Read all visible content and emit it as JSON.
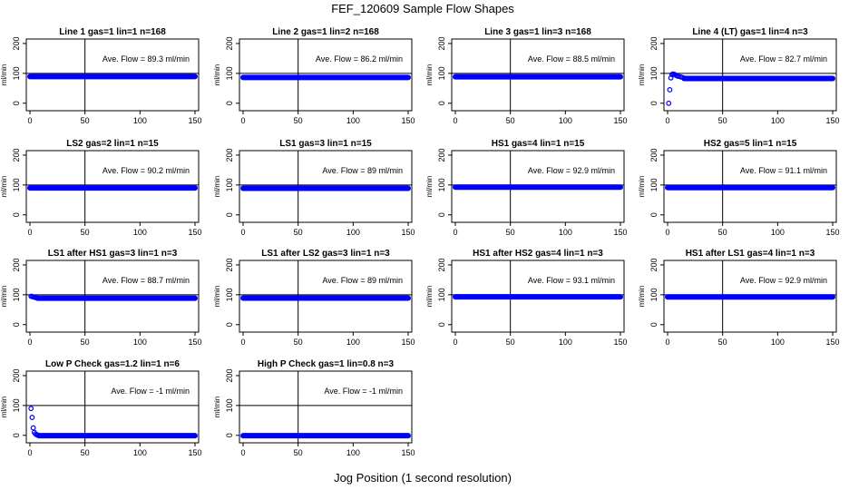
{
  "figure": {
    "title": "FEF_120609  Sample Flow Shapes",
    "xlabel": "Jog Position (1 second resolution)"
  },
  "colors": {
    "points": "#0000ff",
    "axes": "#000000"
  },
  "chart_data": [
    {
      "type": "scatter",
      "title": "Line 1 gas=1 lin=1 n=168",
      "ylabel": "ml/min",
      "xlim": [
        0,
        150
      ],
      "ylim": [
        -25,
        215
      ],
      "xticks": [
        0,
        50,
        100,
        150
      ],
      "yticks": [
        0,
        100,
        200
      ],
      "vline_x": 50,
      "hline_y": 100,
      "annotation": "Ave. Flow =  89.3  ml/min",
      "flow_value": 89.3,
      "head": [],
      "x_range": [
        0,
        150
      ]
    },
    {
      "type": "scatter",
      "title": "Line 2 gas=1 lin=2 n=168",
      "ylabel": "ml/min",
      "xlim": [
        0,
        150
      ],
      "ylim": [
        -25,
        215
      ],
      "xticks": [
        0,
        50,
        100,
        150
      ],
      "yticks": [
        0,
        100,
        200
      ],
      "vline_x": 50,
      "hline_y": 100,
      "annotation": "Ave. Flow =  86.2  ml/min",
      "flow_value": 86.2,
      "head": [],
      "x_range": [
        0,
        150
      ]
    },
    {
      "type": "scatter",
      "title": "Line 3 gas=1 lin=3 n=168",
      "ylabel": "ml/min",
      "xlim": [
        0,
        150
      ],
      "ylim": [
        -25,
        215
      ],
      "xticks": [
        0,
        50,
        100,
        150
      ],
      "yticks": [
        0,
        100,
        200
      ],
      "vline_x": 50,
      "hline_y": 100,
      "annotation": "Ave. Flow =  88.5  ml/min",
      "flow_value": 88.5,
      "head": [],
      "x_range": [
        0,
        150
      ]
    },
    {
      "type": "scatter",
      "title": "Line 4 (LT) gas=1 lin=4 n=3",
      "ylabel": "ml/min",
      "xlim": [
        0,
        150
      ],
      "ylim": [
        -25,
        215
      ],
      "xticks": [
        0,
        50,
        100,
        150
      ],
      "yticks": [
        0,
        100,
        200
      ],
      "vline_x": 50,
      "hline_y": 100,
      "annotation": "Ave. Flow =  82.7  ml/min",
      "flow_value": 82.7,
      "head": [
        [
          1,
          0
        ],
        [
          2,
          45
        ],
        [
          3,
          85
        ],
        [
          4,
          96
        ],
        [
          5,
          98
        ],
        [
          6,
          97
        ],
        [
          7,
          95
        ],
        [
          8,
          93
        ],
        [
          9,
          91
        ],
        [
          10,
          90
        ],
        [
          12,
          88
        ],
        [
          14,
          86
        ]
      ],
      "x_range": [
        15,
        150
      ]
    },
    {
      "type": "scatter",
      "title": "LS2 gas=2 lin=1 n=15",
      "ylabel": "ml/min",
      "xlim": [
        0,
        150
      ],
      "ylim": [
        -25,
        215
      ],
      "xticks": [
        0,
        50,
        100,
        150
      ],
      "yticks": [
        0,
        100,
        200
      ],
      "vline_x": 50,
      "hline_y": 100,
      "annotation": "Ave. Flow =  90.2  ml/min",
      "flow_value": 90.2,
      "head": [],
      "x_range": [
        0,
        150
      ]
    },
    {
      "type": "scatter",
      "title": "LS1 gas=3 lin=1 n=15",
      "ylabel": "ml/min",
      "xlim": [
        0,
        150
      ],
      "ylim": [
        -25,
        215
      ],
      "xticks": [
        0,
        50,
        100,
        150
      ],
      "yticks": [
        0,
        100,
        200
      ],
      "vline_x": 50,
      "hline_y": 100,
      "annotation": "Ave. Flow =  89  ml/min",
      "flow_value": 89,
      "head": [],
      "x_range": [
        0,
        150
      ]
    },
    {
      "type": "scatter",
      "title": "HS1 gas=4 lin=1 n=15",
      "ylabel": "ml/min",
      "xlim": [
        0,
        150
      ],
      "ylim": [
        -25,
        215
      ],
      "xticks": [
        0,
        50,
        100,
        150
      ],
      "yticks": [
        0,
        100,
        200
      ],
      "vline_x": 50,
      "hline_y": 100,
      "annotation": "Ave. Flow =  92.9  ml/min",
      "flow_value": 92.9,
      "head": [],
      "x_range": [
        0,
        150
      ]
    },
    {
      "type": "scatter",
      "title": "HS2 gas=5 lin=1 n=15",
      "ylabel": "ml/min",
      "xlim": [
        0,
        150
      ],
      "ylim": [
        -25,
        215
      ],
      "xticks": [
        0,
        50,
        100,
        150
      ],
      "yticks": [
        0,
        100,
        200
      ],
      "vline_x": 50,
      "hline_y": 100,
      "annotation": "Ave. Flow =  91.1  ml/min",
      "flow_value": 91.1,
      "head": [],
      "x_range": [
        0,
        150
      ]
    },
    {
      "type": "scatter",
      "title": "LS1 after HS1 gas=3 lin=1 n=3",
      "ylabel": "ml/min",
      "xlim": [
        0,
        150
      ],
      "ylim": [
        -25,
        215
      ],
      "xticks": [
        0,
        50,
        100,
        150
      ],
      "yticks": [
        0,
        100,
        200
      ],
      "vline_x": 50,
      "hline_y": 100,
      "annotation": "Ave. Flow =  88.7  ml/min",
      "flow_value": 88.7,
      "head": [
        [
          1,
          95
        ],
        [
          2,
          94
        ],
        [
          3,
          93
        ],
        [
          4,
          92
        ],
        [
          5,
          91
        ],
        [
          6,
          90
        ]
      ],
      "x_range": [
        7,
        150
      ]
    },
    {
      "type": "scatter",
      "title": "LS1 after LS2 gas=3 lin=1 n=3",
      "ylabel": "ml/min",
      "xlim": [
        0,
        150
      ],
      "ylim": [
        -25,
        215
      ],
      "xticks": [
        0,
        50,
        100,
        150
      ],
      "yticks": [
        0,
        100,
        200
      ],
      "vline_x": 50,
      "hline_y": 100,
      "annotation": "Ave. Flow =  89  ml/min",
      "flow_value": 89,
      "head": [],
      "x_range": [
        0,
        150
      ]
    },
    {
      "type": "scatter",
      "title": "HS1 after HS2 gas=4 lin=1 n=3",
      "ylabel": "ml/min",
      "xlim": [
        0,
        150
      ],
      "ylim": [
        -25,
        215
      ],
      "xticks": [
        0,
        50,
        100,
        150
      ],
      "yticks": [
        0,
        100,
        200
      ],
      "vline_x": 50,
      "hline_y": 100,
      "annotation": "Ave. Flow =  93.1  ml/min",
      "flow_value": 93.1,
      "head": [],
      "x_range": [
        0,
        150
      ]
    },
    {
      "type": "scatter",
      "title": "HS1 after LS1 gas=4 lin=1 n=3",
      "ylabel": "ml/min",
      "xlim": [
        0,
        150
      ],
      "ylim": [
        -25,
        215
      ],
      "xticks": [
        0,
        50,
        100,
        150
      ],
      "yticks": [
        0,
        100,
        200
      ],
      "vline_x": 50,
      "hline_y": 100,
      "annotation": "Ave. Flow =  92.9  ml/min",
      "flow_value": 92.9,
      "head": [],
      "x_range": [
        0,
        150
      ]
    },
    {
      "type": "scatter",
      "title": "Low P Check gas=1.2 lin=1 n=6",
      "ylabel": "ml/min",
      "xlim": [
        0,
        150
      ],
      "ylim": [
        -25,
        215
      ],
      "xticks": [
        0,
        50,
        100,
        150
      ],
      "yticks": [
        0,
        100,
        200
      ],
      "vline_x": 50,
      "hline_y": 100,
      "annotation": "Ave. Flow =  -1  ml/min",
      "flow_value": -1,
      "head": [
        [
          1,
          90
        ],
        [
          2,
          60
        ],
        [
          3,
          25
        ],
        [
          4,
          10
        ],
        [
          5,
          5
        ],
        [
          6,
          2
        ],
        [
          7,
          1
        ]
      ],
      "x_range": [
        8,
        150
      ]
    },
    {
      "type": "scatter",
      "title": "High P Check gas=1 lin=0.8 n=3",
      "ylabel": "ml/min",
      "xlim": [
        0,
        150
      ],
      "ylim": [
        -25,
        215
      ],
      "xticks": [
        0,
        50,
        100,
        150
      ],
      "yticks": [
        0,
        100,
        200
      ],
      "vline_x": 50,
      "hline_y": 100,
      "annotation": "Ave. Flow =  -1  ml/min",
      "flow_value": -1,
      "head": [],
      "x_range": [
        0,
        150
      ]
    }
  ]
}
